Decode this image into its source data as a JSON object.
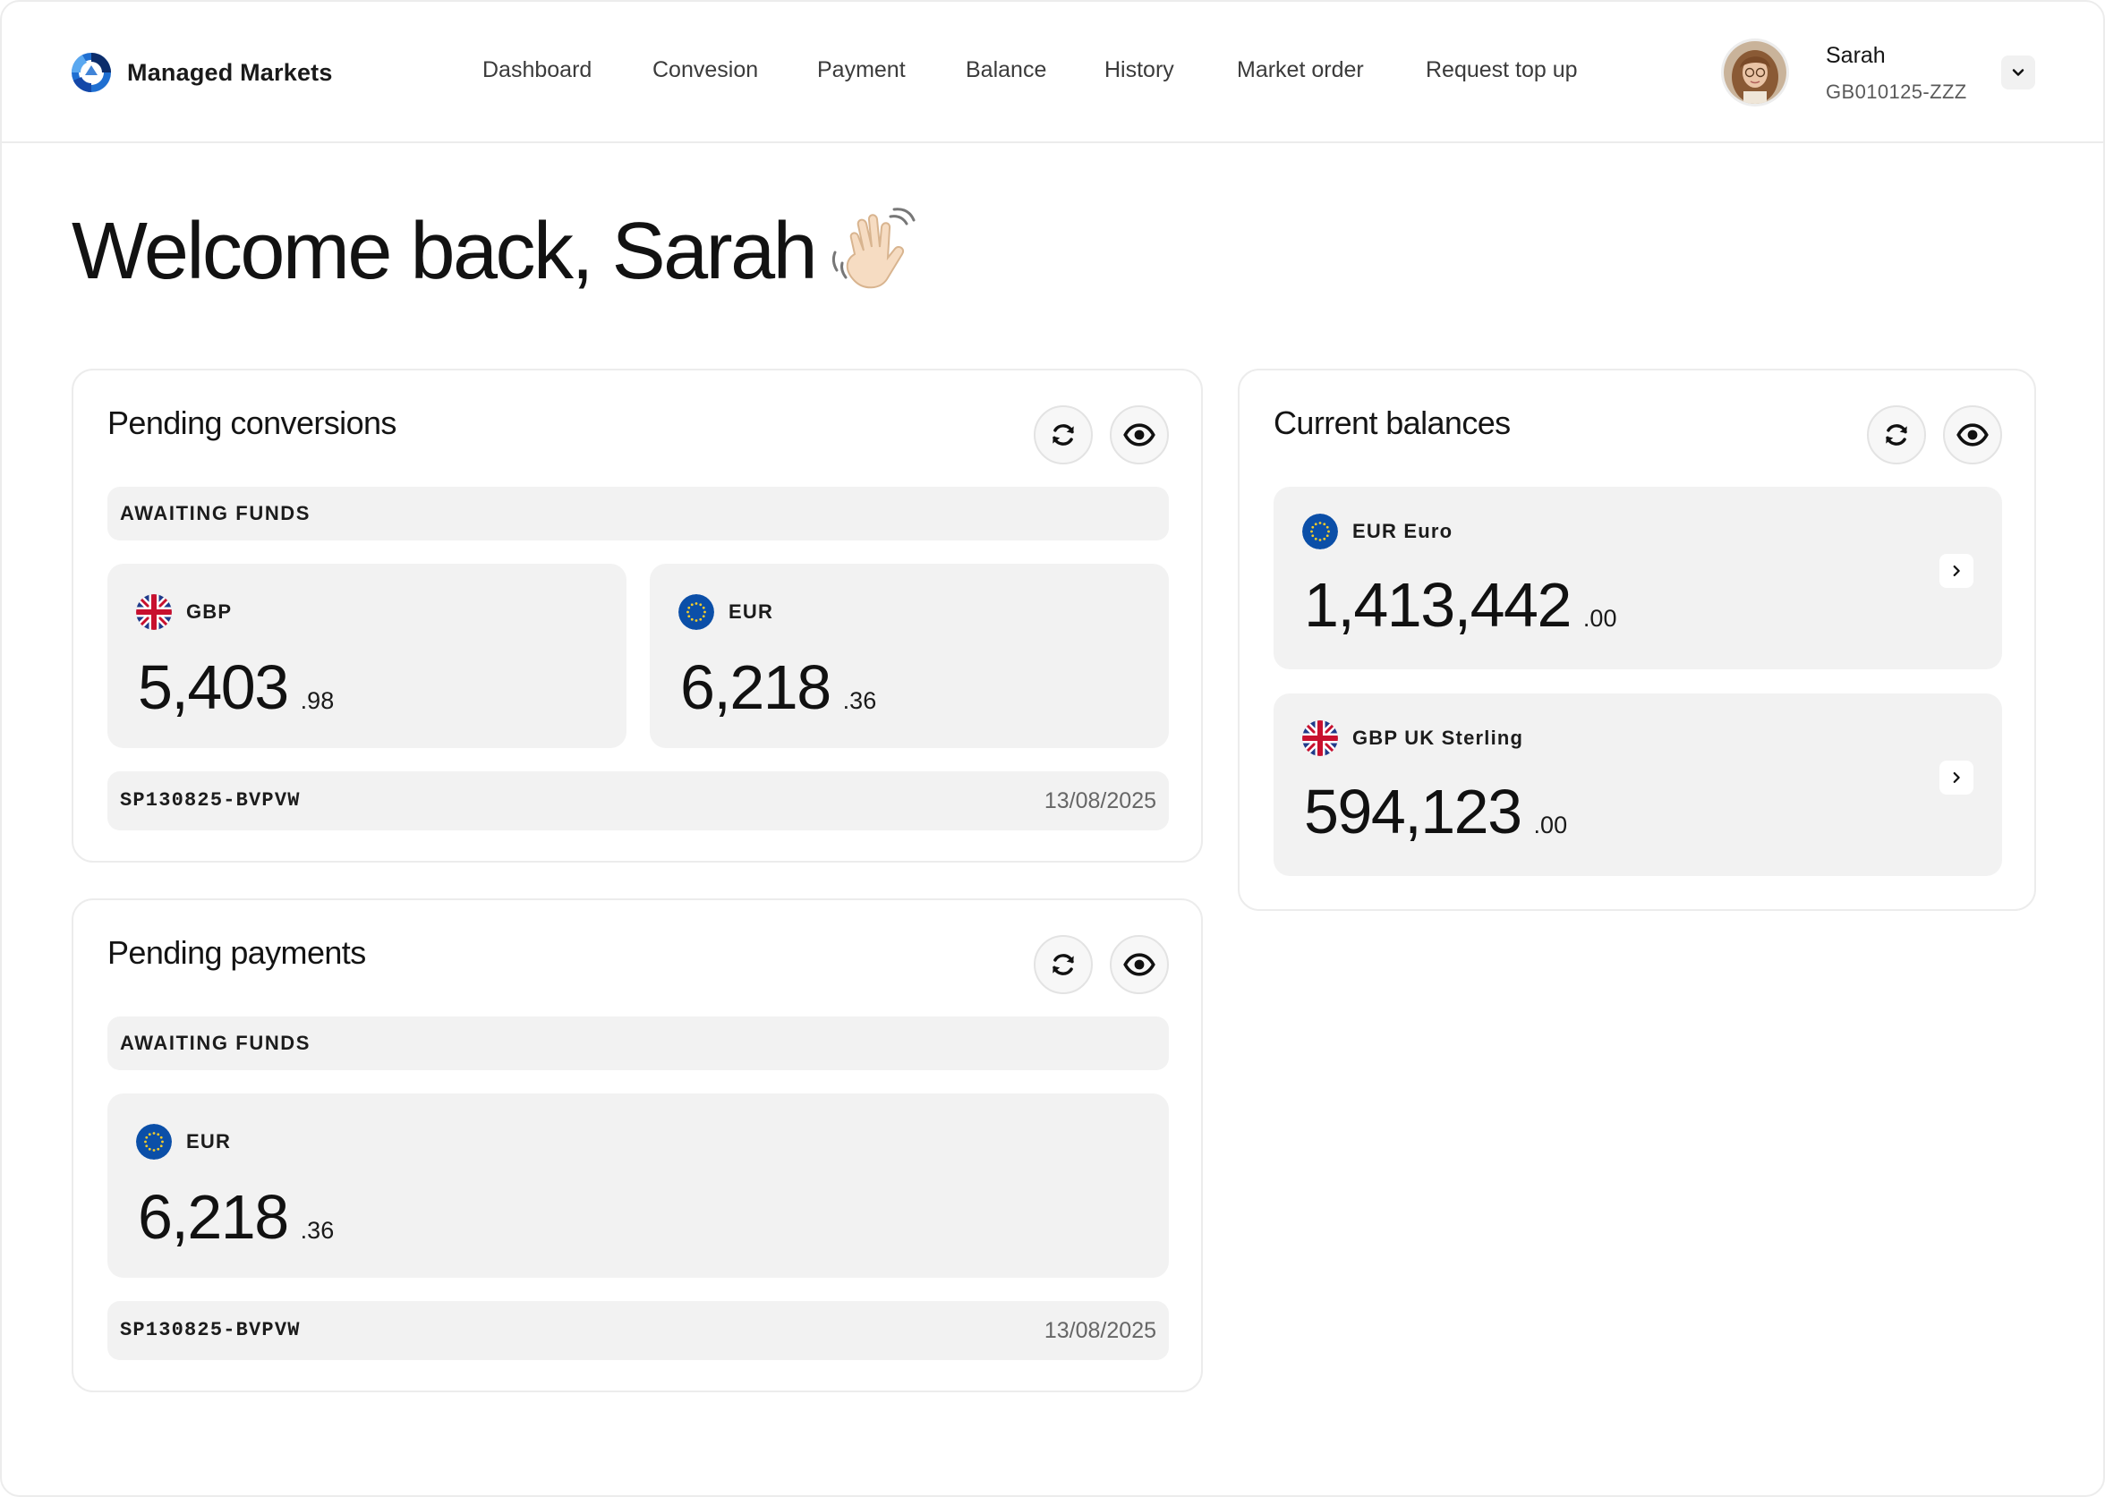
{
  "brand": {
    "name": "Managed Markets"
  },
  "nav": [
    {
      "label": "Dashboard"
    },
    {
      "label": "Convesion"
    },
    {
      "label": "Payment"
    },
    {
      "label": "Balance"
    },
    {
      "label": "History"
    },
    {
      "label": "Market order"
    },
    {
      "label": "Request top up"
    }
  ],
  "user": {
    "name": "Sarah",
    "account_id": "GB010125-ZZZ"
  },
  "welcome": {
    "text": "Welcome back, Sarah"
  },
  "pending_conversions": {
    "title": "Pending conversions",
    "status": "AWAITING FUNDS",
    "items": [
      {
        "currency": "GBP",
        "flag": "uk-flag-icon",
        "amount_main": "5,403",
        "amount_decimal": ".98"
      },
      {
        "currency": "EUR",
        "flag": "eu-flag-icon",
        "amount_main": "6,218",
        "amount_decimal": ".36"
      }
    ],
    "reference": "SP130825-BVPVW",
    "date": "13/08/2025"
  },
  "pending_payments": {
    "title": "Pending payments",
    "status": "AWAITING FUNDS",
    "items": [
      {
        "currency": "EUR",
        "flag": "eu-flag-icon",
        "amount_main": "6,218",
        "amount_decimal": ".36"
      }
    ],
    "reference": "SP130825-BVPVW",
    "date": "13/08/2025"
  },
  "current_balances": {
    "title": "Current balances",
    "items": [
      {
        "currency": "EUR Euro",
        "flag": "eu-flag-icon",
        "amount_main": "1,413,442",
        "amount_decimal": ".00"
      },
      {
        "currency": "GBP UK Sterling",
        "flag": "uk-flag-icon",
        "amount_main": "594,123",
        "amount_decimal": ".00"
      }
    ]
  },
  "colors": {
    "eu_blue": "#0b4fa8",
    "eu_star": "#f4cc2a",
    "uk_blue": "#1f3a8a",
    "uk_red": "#c8102e",
    "brand_blue": "#1f6fd1",
    "surface": "#f2f2f2"
  },
  "icons": [
    "refresh-icon",
    "eye-icon",
    "chevron-down-icon",
    "chevron-right-icon",
    "waving-hand-icon",
    "managed-markets-logo"
  ]
}
